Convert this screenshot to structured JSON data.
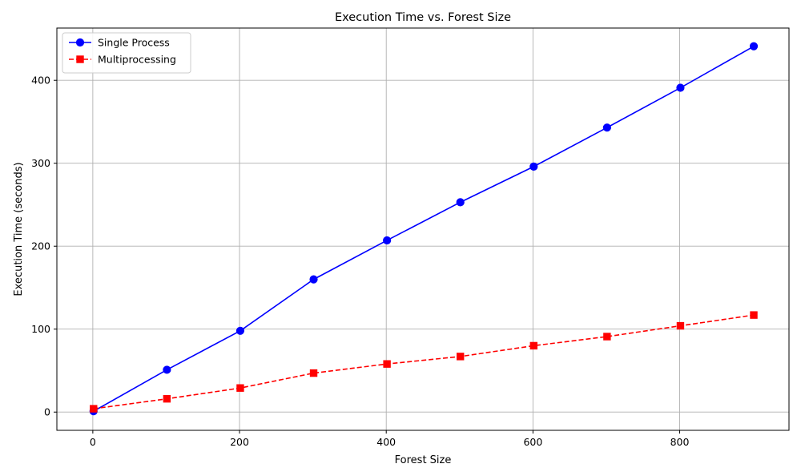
{
  "chart_data": {
    "type": "line",
    "title": "Execution Time vs. Forest Size",
    "xlabel": "Forest Size",
    "ylabel": "Execution Time (seconds)",
    "xlim": [
      -49,
      949
    ],
    "ylim": [
      -22,
      463
    ],
    "xticks": [
      0,
      200,
      400,
      600,
      800
    ],
    "yticks": [
      0,
      100,
      200,
      300,
      400
    ],
    "grid": true,
    "legend_position": "upper-left",
    "x": [
      1,
      101,
      201,
      301,
      401,
      501,
      601,
      701,
      801,
      901
    ],
    "series": [
      {
        "name": "Single Process",
        "color": "#0000ff",
        "marker": "circle",
        "linestyle": "solid",
        "values": [
          1,
          51,
          98,
          160,
          207,
          253,
          296,
          343,
          391,
          441
        ]
      },
      {
        "name": "Multiprocessing",
        "color": "#ff0000",
        "marker": "square",
        "linestyle": "dashed",
        "values": [
          4,
          16,
          29,
          47,
          58,
          67,
          80,
          91,
          104,
          117
        ]
      }
    ]
  }
}
